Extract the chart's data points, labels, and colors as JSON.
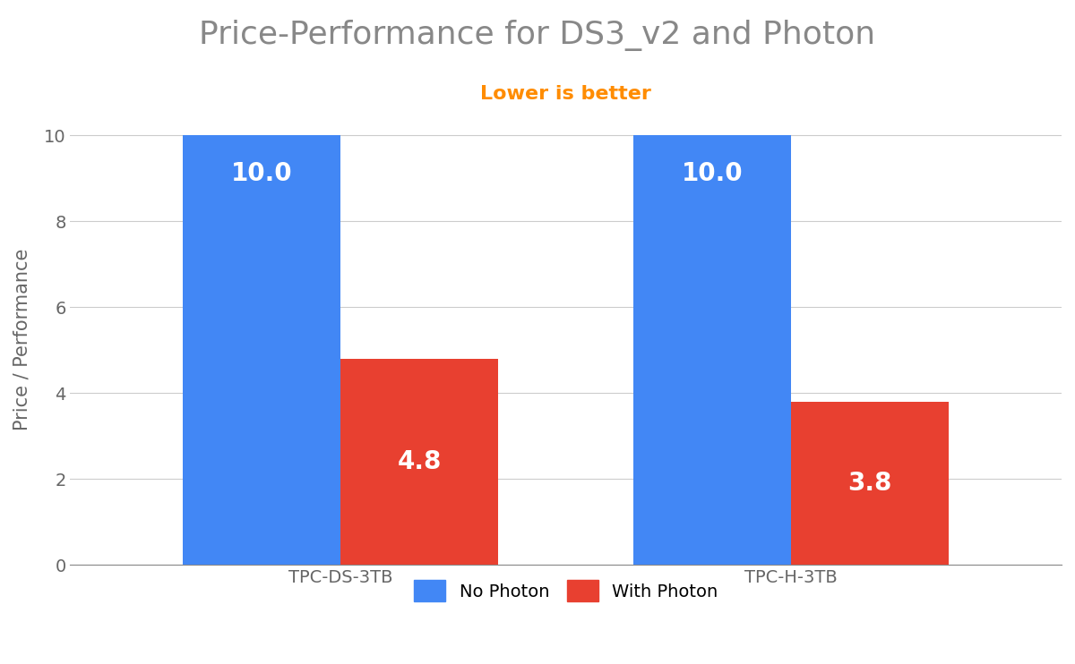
{
  "title": "Price-Performance for DS3_v2 and Photon",
  "subtitle": "Lower is better",
  "subtitle_color": "#FF8C00",
  "ylabel": "Price / Performance",
  "categories": [
    "TPC-DS-3TB",
    "TPC-H-3TB"
  ],
  "no_photon_values": [
    10.0,
    10.0
  ],
  "with_photon_values": [
    4.8,
    3.8
  ],
  "bar_color_no_photon": "#4287F5",
  "bar_color_with_photon": "#E84030",
  "bar_width": 0.35,
  "ylim": [
    0,
    10.5
  ],
  "yticks": [
    0,
    2,
    4,
    6,
    8,
    10
  ],
  "title_fontsize": 26,
  "subtitle_fontsize": 16,
  "label_fontsize": 15,
  "value_fontsize": 20,
  "tick_fontsize": 14,
  "legend_fontsize": 14,
  "background_color": "#FFFFFF",
  "grid_color": "#CCCCCC",
  "axis_color": "#888888",
  "tick_label_color": "#666666",
  "title_color": "#888888",
  "legend_labels": [
    "No Photon",
    "With Photon"
  ]
}
